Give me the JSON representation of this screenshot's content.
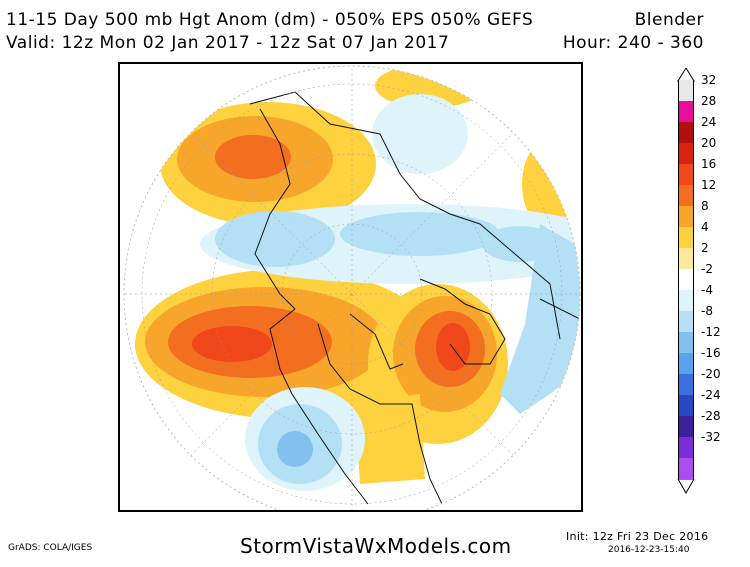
{
  "header": {
    "title": "11-15 Day 500 mb Hgt Anom (dm) - 050% EPS 050% GEFS",
    "product": "Blender",
    "valid": "Valid: 12z Mon 02 Jan 2017 - 12z Sat 07 Jan 2017",
    "hours": "Hour: 240 - 360"
  },
  "colorbar": {
    "bins": [
      {
        "label": "32",
        "color": "#e8e8e8"
      },
      {
        "label": "28",
        "color": "#e60e9a"
      },
      {
        "label": "24",
        "color": "#b21010"
      },
      {
        "label": "20",
        "color": "#d9230f"
      },
      {
        "label": "16",
        "color": "#f0481a"
      },
      {
        "label": "12",
        "color": "#f36e1f"
      },
      {
        "label": "8",
        "color": "#f8a52c"
      },
      {
        "label": "4",
        "color": "#fdd23e"
      },
      {
        "label": "2",
        "color": "#fde99a"
      },
      {
        "label": "-2",
        "color": "#ffffff"
      },
      {
        "label": "-4",
        "color": "#dff3fb"
      },
      {
        "label": "-8",
        "color": "#b4e0f6"
      },
      {
        "label": "-12",
        "color": "#82c1ef"
      },
      {
        "label": "-16",
        "color": "#5aa2eb"
      },
      {
        "label": "-20",
        "color": "#3a6fde"
      },
      {
        "label": "-24",
        "color": "#2747c4"
      },
      {
        "label": "-28",
        "color": "#3b2099"
      },
      {
        "label": "-32",
        "color": "#7c2ed6"
      },
      {
        "label": "",
        "color": "#a94ef1"
      }
    ]
  },
  "footer": {
    "grads_credit": "GrADS: COLA/IGES",
    "website": "StormVistaWxModels.com",
    "init": "Init: 12z Fri 23 Dec 2016",
    "timestamp": "2016-12-23-15:40"
  }
}
